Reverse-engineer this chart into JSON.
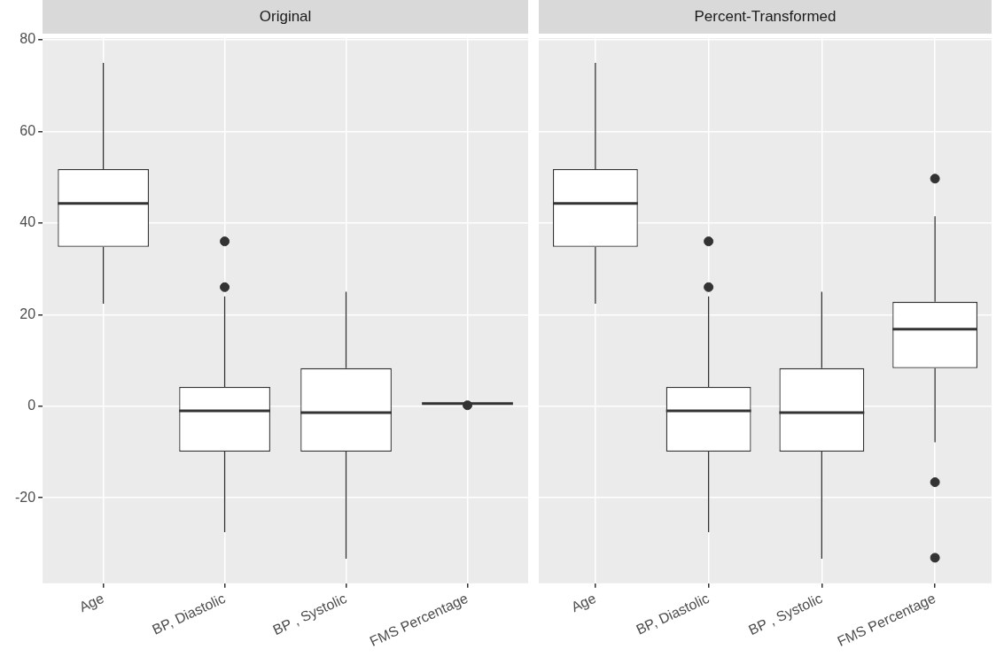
{
  "chart_data": [
    {
      "type": "box",
      "title": "Original",
      "categories": [
        "Age",
        "BP, Diastolic",
        "BP , Systolic",
        "FMS Percentage"
      ],
      "boxes": [
        {
          "low": 22.4,
          "q1": 34.8,
          "median": 44.3,
          "q3": 51.8,
          "high": 75.0
        },
        {
          "low": -27.5,
          "q1": -9.9,
          "median": -1.0,
          "q3": 4.2,
          "high": 24.0,
          "outliers": [
            36.0,
            26.0
          ]
        },
        {
          "low": -33.3,
          "q1": -9.9,
          "median": -1.4,
          "q3": 8.3,
          "high": 25.0
        },
        {
          "low": 0.6,
          "q1": 0.6,
          "median": 0.6,
          "q3": 0.6,
          "high": 0.6,
          "outliers": [
            0.2
          ]
        }
      ],
      "ylim": [
        -38.7,
        80.4
      ],
      "yticks": [
        -20,
        0,
        20,
        40,
        60,
        80
      ],
      "grid": true
    },
    {
      "type": "box",
      "title": "Percent-Transformed",
      "categories": [
        "Age",
        "BP, Diastolic",
        "BP , Systolic",
        "FMS Percentage"
      ],
      "boxes": [
        {
          "low": 22.4,
          "q1": 34.8,
          "median": 44.3,
          "q3": 51.8,
          "high": 75.0
        },
        {
          "low": -27.5,
          "q1": -9.9,
          "median": -1.0,
          "q3": 4.2,
          "high": 24.0,
          "outliers": [
            36.0,
            26.0
          ]
        },
        {
          "low": -33.3,
          "q1": -9.9,
          "median": -1.4,
          "q3": 8.3,
          "high": 25.0
        },
        {
          "low": -7.9,
          "q1": 8.3,
          "median": 16.8,
          "q3": 22.8,
          "high": 41.5,
          "outliers": [
            49.7,
            -16.6,
            -33.1
          ]
        }
      ],
      "ylim": [
        -38.7,
        80.4
      ],
      "yticks": [
        -20,
        0,
        20,
        40,
        60,
        80
      ],
      "grid": true,
      "tick_labels": "x"
    }
  ]
}
